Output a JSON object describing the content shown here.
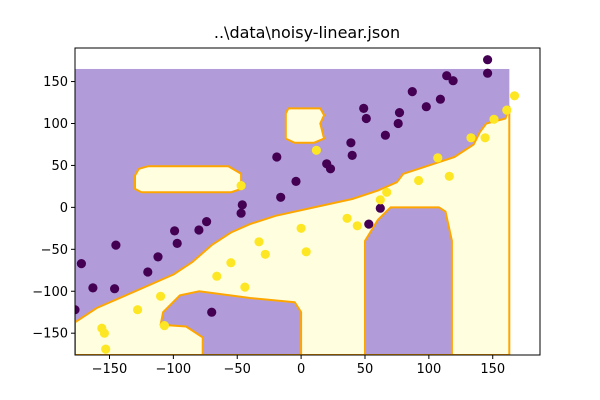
{
  "chart_data": {
    "type": "scatter",
    "title": "..\\data\\noisy-linear.json",
    "xlabel": "",
    "ylabel": "",
    "xlim": [
      -177,
      187
    ],
    "ylim": [
      -176,
      190
    ],
    "x_ticks": [
      -150,
      -100,
      -50,
      0,
      50,
      100,
      150
    ],
    "y_ticks": [
      -150,
      -100,
      -50,
      0,
      50,
      100,
      150
    ],
    "x_tick_labels": [
      "−150",
      "−100",
      "−50",
      "0",
      "50",
      "100",
      "150"
    ],
    "y_tick_labels": [
      "−150",
      "−100",
      "−50",
      "0",
      "50",
      "100",
      "150"
    ],
    "grid": false,
    "colors": {
      "class_0_point": "#440154",
      "class_1_point": "#fde725",
      "class_0_region": "#b19cd9",
      "class_1_region": "#ffffe0",
      "boundary": "#ffa500"
    },
    "decision_regions": {
      "extent": {
        "x": [
          -177,
          163
        ],
        "y": [
          -176,
          165
        ]
      },
      "class_1_regions": [
        [
          [
            -177,
            -137
          ],
          [
            -160,
            -120
          ],
          [
            -130,
            -100
          ],
          [
            -100,
            -80
          ],
          [
            -85,
            -65
          ],
          [
            -70,
            -45
          ],
          [
            -55,
            -30
          ],
          [
            -40,
            -20
          ],
          [
            -20,
            -10
          ],
          [
            10,
            0
          ],
          [
            40,
            10
          ],
          [
            60,
            20
          ],
          [
            75,
            30
          ],
          [
            80,
            40
          ],
          [
            100,
            50
          ],
          [
            120,
            60
          ],
          [
            135,
            75
          ],
          [
            140,
            90
          ],
          [
            145,
            100
          ],
          [
            160,
            106
          ],
          [
            163,
            120
          ],
          [
            163,
            -176
          ],
          [
            -177,
            -176
          ]
        ],
        [
          [
            -130,
            38
          ],
          [
            -127,
            46
          ],
          [
            -120,
            49
          ],
          [
            -57,
            49
          ],
          [
            -47,
            40
          ],
          [
            -47,
            22
          ],
          [
            -55,
            18
          ],
          [
            -125,
            18
          ],
          [
            -130,
            22
          ]
        ],
        [
          [
            -12,
            112
          ],
          [
            -10,
            118
          ],
          [
            15,
            118
          ],
          [
            18,
            110
          ],
          [
            15,
            100
          ],
          [
            18,
            82
          ],
          [
            10,
            77
          ],
          [
            -5,
            77
          ],
          [
            -12,
            82
          ]
        ]
      ],
      "class_0_islands": [
        [
          [
            50,
            -40
          ],
          [
            50,
            -176
          ],
          [
            118,
            -176
          ],
          [
            118,
            -40
          ],
          [
            113,
            -5
          ],
          [
            108,
            0
          ],
          [
            70,
            0
          ],
          [
            60,
            -15
          ]
        ],
        [
          [
            -110,
            -140
          ],
          [
            -108,
            -125
          ],
          [
            -95,
            -105
          ],
          [
            -80,
            -100
          ],
          [
            -40,
            -108
          ],
          [
            -5,
            -113
          ],
          [
            0,
            -125
          ],
          [
            0,
            -176
          ],
          [
            -77,
            -176
          ],
          [
            -77,
            -155
          ],
          [
            -90,
            -142
          ]
        ]
      ]
    },
    "series": [
      {
        "class": 0,
        "points": [
          [
            -172,
            -67
          ],
          [
            -177,
            -122
          ],
          [
            -163,
            -96
          ],
          [
            -145,
            -45
          ],
          [
            -146,
            -97
          ],
          [
            -120,
            -77
          ],
          [
            -112,
            -59
          ],
          [
            -99,
            -28
          ],
          [
            -97,
            -43
          ],
          [
            -80,
            -27
          ],
          [
            -74,
            -17
          ],
          [
            -70,
            -125
          ],
          [
            -46,
            3
          ],
          [
            -47,
            -7
          ],
          [
            -19,
            60
          ],
          [
            -16,
            12
          ],
          [
            -4,
            31
          ],
          [
            20,
            52
          ],
          [
            23,
            46
          ],
          [
            39,
            77
          ],
          [
            40,
            62
          ],
          [
            49,
            118
          ],
          [
            51,
            106
          ],
          [
            53,
            -20
          ],
          [
            62,
            -1
          ],
          [
            66,
            86
          ],
          [
            76,
            100
          ],
          [
            77,
            113
          ],
          [
            87,
            138
          ],
          [
            98,
            120
          ],
          [
            109,
            129
          ],
          [
            114,
            157
          ],
          [
            119,
            151
          ],
          [
            146,
            160
          ],
          [
            146,
            176
          ]
        ]
      },
      {
        "class": 1,
        "points": [
          [
            -156,
            -144
          ],
          [
            -154,
            -150
          ],
          [
            -153,
            -169
          ],
          [
            -128,
            -122
          ],
          [
            -110,
            -106
          ],
          [
            -107,
            -141
          ],
          [
            -66,
            -82
          ],
          [
            -55,
            -66
          ],
          [
            -47,
            26
          ],
          [
            -44,
            -95
          ],
          [
            -33,
            -41
          ],
          [
            -28,
            -56
          ],
          [
            0,
            -25
          ],
          [
            4,
            -53
          ],
          [
            12,
            68
          ],
          [
            36,
            -13
          ],
          [
            44,
            -22
          ],
          [
            62,
            9
          ],
          [
            67,
            18
          ],
          [
            92,
            32
          ],
          [
            107,
            59
          ],
          [
            116,
            37
          ],
          [
            133,
            83
          ],
          [
            144,
            83
          ],
          [
            151,
            105
          ],
          [
            161,
            116
          ],
          [
            167,
            133
          ]
        ]
      }
    ]
  }
}
